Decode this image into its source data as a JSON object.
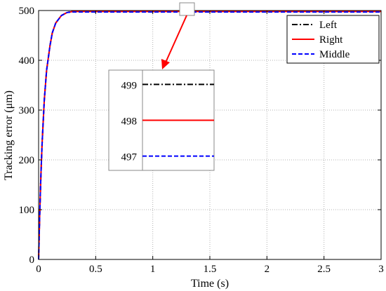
{
  "chart_data": {
    "type": "line",
    "title": "",
    "xlabel": "Time (s)",
    "ylabel": "Tracking error (μm)",
    "xlim": [
      0,
      3
    ],
    "ylim": [
      0,
      500
    ],
    "xticks": [
      0,
      0.5,
      1,
      1.5,
      2,
      2.5,
      3
    ],
    "xtick_labels": [
      "0",
      "0.5",
      "1",
      "1.5",
      "2",
      "2.5",
      "3"
    ],
    "yticks": [
      0,
      100,
      200,
      300,
      400,
      500
    ],
    "ytick_labels": [
      "0",
      "100",
      "200",
      "300",
      "400",
      "500"
    ],
    "grid": true,
    "legend_position": "top-right",
    "x": [
      0,
      0.01,
      0.02,
      0.03,
      0.05,
      0.07,
      0.1,
      0.12,
      0.15,
      0.2,
      0.25,
      0.3,
      0.4,
      0.5,
      1,
      1.5,
      2,
      2.5,
      3
    ],
    "series": [
      {
        "name": "Left",
        "color": "#000000",
        "dash": "dashdot",
        "values": [
          0,
          90,
          170,
          230,
          320,
          380,
          430,
          455,
          475,
          490,
          496,
          499,
          499,
          499,
          499,
          499,
          499,
          499,
          499
        ]
      },
      {
        "name": "Right",
        "color": "#ff0000",
        "dash": "solid",
        "values": [
          0,
          90,
          170,
          230,
          320,
          380,
          430,
          455,
          475,
          490,
          496,
          498,
          498,
          498,
          498,
          498,
          498,
          498,
          498
        ]
      },
      {
        "name": "Middle",
        "color": "#0000ff",
        "dash": "dashed",
        "values": [
          0,
          90,
          170,
          230,
          320,
          380,
          430,
          455,
          475,
          490,
          496,
          497,
          497,
          497,
          497,
          497,
          497,
          497,
          497
        ]
      }
    ],
    "inset": {
      "ylim": [
        496.6,
        499.4
      ],
      "yticks": [
        497,
        498,
        499
      ],
      "ytick_labels": [
        "497",
        "498",
        "499"
      ],
      "zoom_x": 1.3,
      "zoom_y": 499
    }
  }
}
